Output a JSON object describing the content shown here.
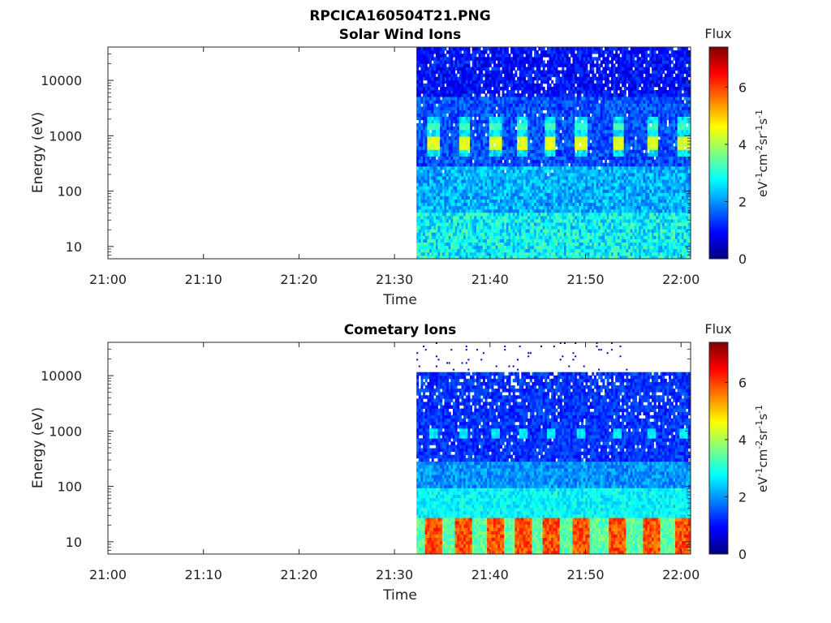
{
  "figure_title": "RPCICA160504T21.PNG",
  "chart_data": [
    {
      "type": "heatmap",
      "title": "Solar Wind Ions",
      "xlabel": "Time",
      "ylabel": "Energy (eV)",
      "x_ticks": [
        "21:00",
        "21:10",
        "21:20",
        "21:30",
        "21:40",
        "21:50",
        "22:00"
      ],
      "x_range_minutes": [
        0,
        61
      ],
      "data_start_minute": 32.3,
      "y_scale": "log",
      "y_ticks": [
        10,
        100,
        1000,
        10000
      ],
      "y_range": [
        6,
        40000
      ],
      "data_energy_max": 40000,
      "colorbar": {
        "label": "Flux",
        "units": "eV-1cm-2sr-1s-1",
        "range": [
          0,
          7.4
        ],
        "ticks": [
          0,
          2,
          4,
          6
        ],
        "colormap": "jet"
      },
      "features": {
        "background_level": 1.0,
        "beam_energy_eV": 750,
        "beam_level": 4.1,
        "secondary_energy_eV": 1450,
        "secondary_level": 3.0,
        "low_energy_level": 2.6,
        "beam_times_minutes": [
          34.1,
          37.3,
          40.6,
          43.4,
          46.3,
          49.5,
          53.4,
          57.0,
          60.3
        ]
      }
    },
    {
      "type": "heatmap",
      "title": "Cometary Ions",
      "xlabel": "Time",
      "ylabel": "Energy (eV)",
      "x_ticks": [
        "21:00",
        "21:10",
        "21:20",
        "21:30",
        "21:40",
        "21:50",
        "22:00"
      ],
      "x_range_minutes": [
        0,
        61
      ],
      "data_start_minute": 32.3,
      "y_scale": "log",
      "y_ticks": [
        10,
        100,
        1000,
        10000
      ],
      "y_range": [
        6,
        40000
      ],
      "data_energy_max": 11000,
      "colorbar": {
        "label": "Flux",
        "units": "eV-1cm-2sr-1s-1",
        "range": [
          0,
          7.4
        ],
        "ticks": [
          0,
          2,
          4,
          6
        ],
        "colormap": "jet"
      },
      "features": {
        "background_level": 0.9,
        "low_energy_max_eV": 28,
        "low_energy_level": 5.4,
        "secondary_energy_eV": 900,
        "secondary_level": 2.4,
        "beam_times_minutes": [
          34.1,
          37.3,
          40.6,
          43.4,
          46.3,
          49.5,
          53.4,
          57.0,
          60.3
        ]
      }
    }
  ]
}
